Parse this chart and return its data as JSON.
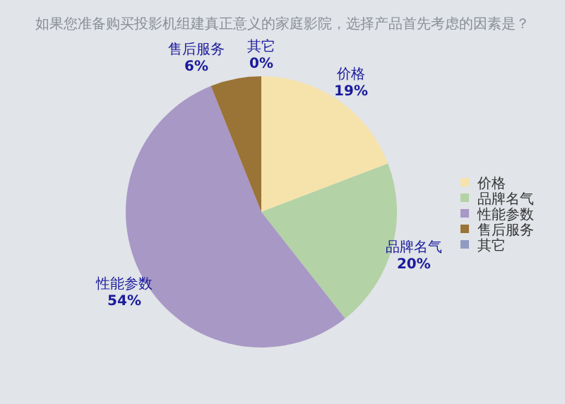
{
  "chart_data": {
    "type": "pie",
    "title": "如果您准备购买投影机组建真正意义的家庭影院，选择产品首先考虑的因素是？",
    "categories": [
      "价格",
      "品牌名气",
      "性能参数",
      "售后服务",
      "其它"
    ],
    "values": [
      19,
      20,
      54,
      6,
      0
    ],
    "colors": [
      "#f6e3ab",
      "#b3d2a5",
      "#a898c6",
      "#9a7436",
      "#8f9bc2"
    ],
    "value_labels": [
      "19%",
      "20%",
      "54%",
      "6%",
      "0%"
    ],
    "legend": "right"
  }
}
